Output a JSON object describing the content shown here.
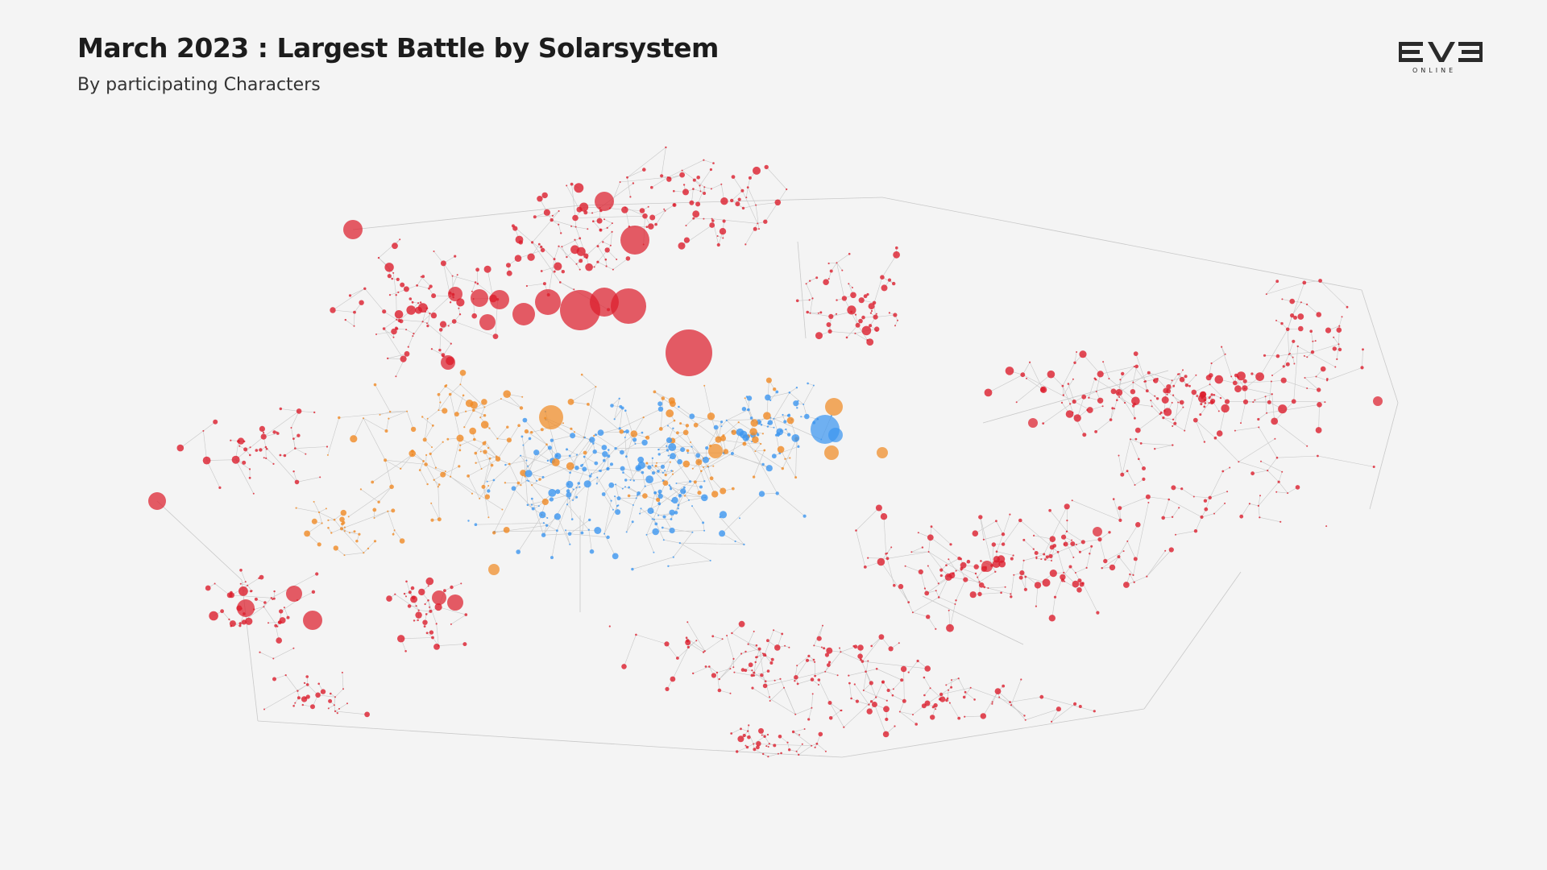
{
  "header": {
    "title": "March 2023 : Largest Battle by Solarsystem",
    "subtitle": "By participating Characters"
  },
  "logo": {
    "main_text": "EVE",
    "sub_text": "ONLINE"
  },
  "colors": {
    "background": "#f4f4f4",
    "red": "#dc1e2d",
    "orange": "#f08a24",
    "blue": "#3c96f0",
    "edge": "#c8c8c8",
    "title": "#1c1c1c"
  },
  "map_style": {
    "type": "node-link star map",
    "categories": [
      "red",
      "orange",
      "blue"
    ]
  }
}
